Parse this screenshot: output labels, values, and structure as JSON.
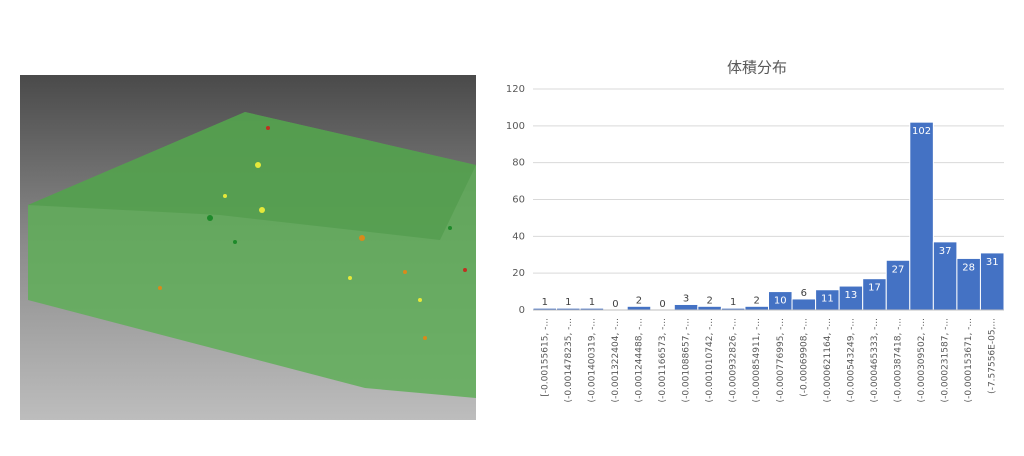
{
  "chart_data": {
    "type": "bar",
    "title": "体積分布",
    "categories": [
      "[-0.00155615, -...",
      "(-0.001478235, -...",
      "(-0.001400319, -...",
      "(-0.001322404, -...",
      "(-0.001244488, -...",
      "(-0.001166573, -...",
      "(-0.001088657, -...",
      "(-0.001010742, -...",
      "(-0.000932826, -...",
      "(-0.000854911, -...",
      "(-0.000776995, -...",
      "(-0.00069908, -...",
      "(-0.000621164, -...",
      "(-0.000543249, -...",
      "(-0.000465333, -...",
      "(-0.000387418, -...",
      "(-0.000309502, -...",
      "(-0.000231587, -...",
      "(-0.000153671, -...",
      "(-7.57556E-05,..."
    ],
    "values": [
      1,
      1,
      1,
      0,
      2,
      0,
      3,
      2,
      1,
      2,
      10,
      6,
      11,
      13,
      17,
      27,
      102,
      37,
      28,
      31
    ],
    "color": "#4472c4",
    "ylim": [
      0,
      120
    ],
    "yticks": [
      0,
      20,
      40,
      60,
      80,
      100,
      120
    ],
    "grid": true
  }
}
